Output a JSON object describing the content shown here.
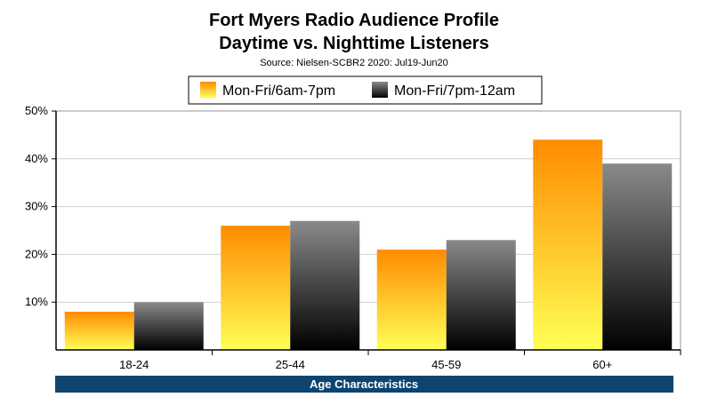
{
  "chart_data": {
    "type": "bar",
    "title": "Fort Myers Radio Audience Profile",
    "subtitle": "Daytime vs. Nighttime Listeners",
    "source": "Source: Nielsen-SCBR2 2020: Jul19-Jun20",
    "categories": [
      "18-24",
      "25-44",
      "45-59",
      "60+"
    ],
    "series": [
      {
        "name": "Mon-Fri/6am-7pm",
        "values": [
          8,
          26,
          21,
          44
        ],
        "color_top": "#ff8c00",
        "color_bottom": "#ffff55"
      },
      {
        "name": "Mon-Fri/7pm-12am",
        "values": [
          10,
          27,
          23,
          39
        ],
        "color_top": "#8a8a8a",
        "color_bottom": "#000000"
      }
    ],
    "xlabel": "Age Characteristics",
    "ylabel": "",
    "ylim": [
      0,
      50
    ],
    "yticks": [
      10,
      20,
      30,
      40,
      50
    ],
    "ytick_labels": [
      "10%",
      "20%",
      "30%",
      "40%",
      "50%"
    ],
    "legend_position": "top-center",
    "grid": true,
    "xlabel_bar_color": "#0d4470"
  }
}
